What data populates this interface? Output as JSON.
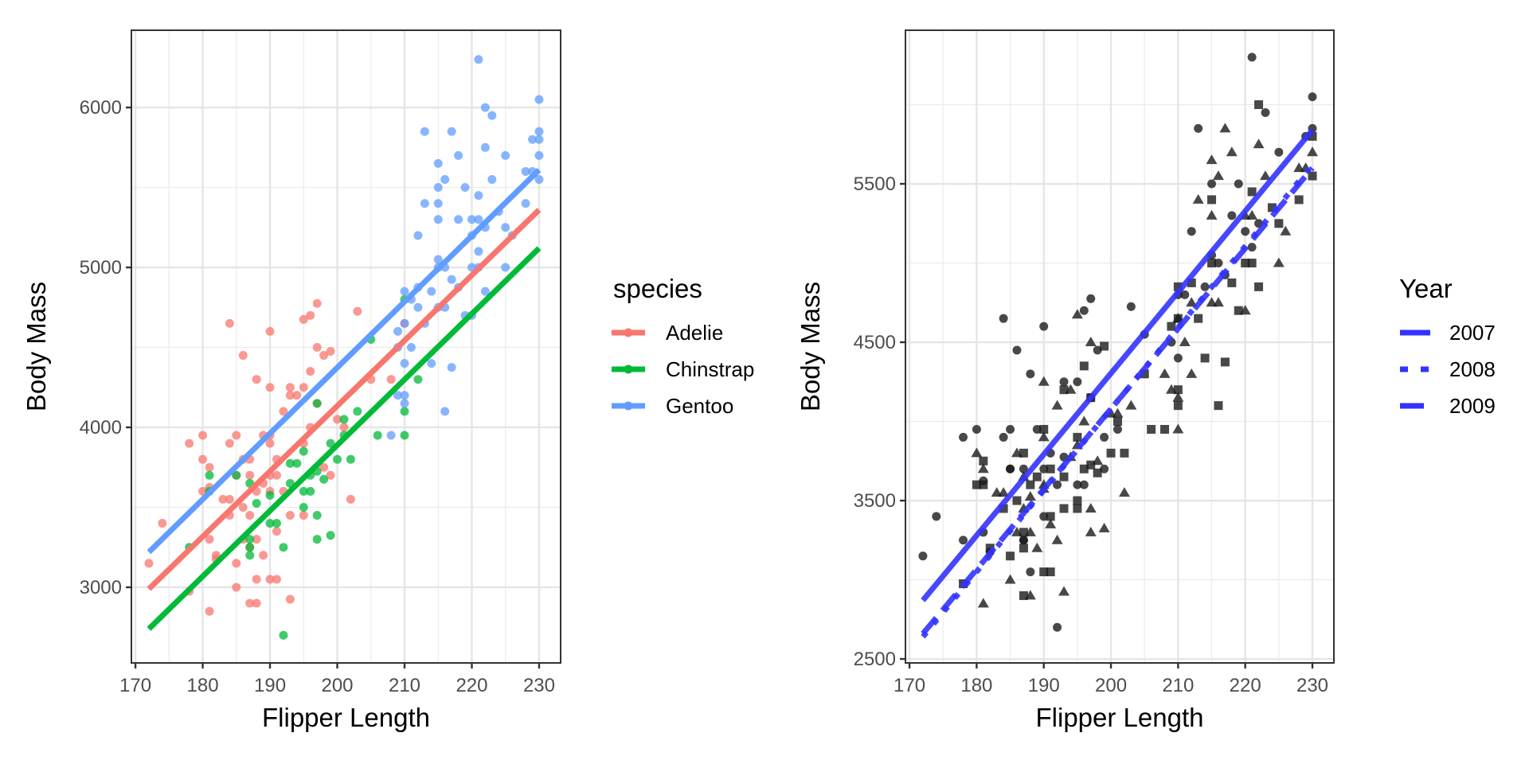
{
  "chart_data": [
    {
      "type": "scatter",
      "panel": "left",
      "title": "",
      "xlabel": "Flipper Length",
      "ylabel": "Body Mass",
      "xlim": [
        169.4,
        233.2
      ],
      "ylim": [
        2527,
        6483
      ],
      "xticks": [
        170,
        180,
        190,
        200,
        210,
        220,
        230
      ],
      "yticks": [
        3000,
        4000,
        5000,
        6000
      ],
      "grid": true,
      "legend": {
        "title": "species",
        "placement": "right",
        "entries": [
          {
            "label": "Adelie",
            "color": "#F8766D"
          },
          {
            "label": "Chinstrap",
            "color": "#00BA38"
          },
          {
            "label": "Gentoo",
            "color": "#619CFF"
          }
        ]
      },
      "color_by": "species",
      "regression_lines": [
        {
          "name": "Adelie",
          "color": "#F8766D",
          "x": [
            172,
            230
          ],
          "y": [
            2990,
            5360
          ]
        },
        {
          "name": "Chinstrap",
          "color": "#00BA38",
          "x": [
            172,
            230
          ],
          "y": [
            2740,
            5120
          ]
        },
        {
          "name": "Gentoo",
          "color": "#619CFF",
          "x": [
            172,
            230
          ],
          "y": [
            3220,
            5610
          ]
        }
      ]
    },
    {
      "type": "scatter",
      "panel": "right",
      "title": "",
      "xlabel": "Flipper Length",
      "ylabel": "Body Mass",
      "xlim": [
        169.4,
        233.2
      ],
      "ylim": [
        2475,
        6470
      ],
      "xticks": [
        170,
        180,
        190,
        200,
        210,
        220,
        230
      ],
      "yticks": [
        2500,
        3500,
        4500,
        5500
      ],
      "grid": true,
      "legend": {
        "title": "Year",
        "placement": "right",
        "entries": [
          {
            "label": "2007",
            "linetype": "solid",
            "shape": "circle"
          },
          {
            "label": "2008",
            "linetype": "dotted",
            "shape": "triangle"
          },
          {
            "label": "2009",
            "linetype": "dashed",
            "shape": "square"
          }
        ]
      },
      "line_color": "#3333FF",
      "point_color": "#1a1a1a",
      "shape_by": "year",
      "regression_lines": [
        {
          "name": "2007",
          "linetype": "solid",
          "x": [
            172,
            230
          ],
          "y": [
            2870,
            5840
          ]
        },
        {
          "name": "2008",
          "linetype": "dotted",
          "x": [
            172,
            230
          ],
          "y": [
            2640,
            5620
          ]
        },
        {
          "name": "2009",
          "linetype": "dashed",
          "x": [
            172,
            230
          ],
          "y": [
            2660,
            5600
          ]
        }
      ]
    }
  ],
  "points": [
    [
      "Adelie",
      172,
      3150,
      2007
    ],
    [
      "Adelie",
      174,
      3400,
      2007
    ],
    [
      "Adelie",
      178,
      3900,
      2007
    ],
    [
      "Adelie",
      178,
      2975,
      2009
    ],
    [
      "Adelie",
      180,
      3800,
      2008
    ],
    [
      "Adelie",
      180,
      3950,
      2007
    ],
    [
      "Adelie",
      180,
      3600,
      2009
    ],
    [
      "Adelie",
      181,
      3300,
      2007
    ],
    [
      "Adelie",
      181,
      2850,
      2008
    ],
    [
      "Adelie",
      181,
      3625,
      2007
    ],
    [
      "Adelie",
      181,
      3750,
      2009
    ],
    [
      "Adelie",
      182,
      3175,
      2007
    ],
    [
      "Adelie",
      182,
      3200,
      2009
    ],
    [
      "Adelie",
      183,
      3550,
      2008
    ],
    [
      "Adelie",
      184,
      3900,
      2007
    ],
    [
      "Adelie",
      184,
      4650,
      2007
    ],
    [
      "Adelie",
      184,
      3450,
      2009
    ],
    [
      "Adelie",
      184,
      3550,
      2008
    ],
    [
      "Adelie",
      185,
      3700,
      2007
    ],
    [
      "Adelie",
      185,
      3000,
      2008
    ],
    [
      "Adelie",
      185,
      3150,
      2009
    ],
    [
      "Adelie",
      185,
      3950,
      2007
    ],
    [
      "Adelie",
      186,
      3800,
      2008
    ],
    [
      "Adelie",
      186,
      4450,
      2007
    ],
    [
      "Adelie",
      186,
      3500,
      2009
    ],
    [
      "Adelie",
      186,
      3300,
      2008
    ],
    [
      "Adelie",
      187,
      3800,
      2009
    ],
    [
      "Adelie",
      187,
      3700,
      2007
    ],
    [
      "Adelie",
      187,
      3450,
      2008
    ],
    [
      "Adelie",
      187,
      2900,
      2009
    ],
    [
      "Adelie",
      187,
      3250,
      2007
    ],
    [
      "Adelie",
      188,
      3300,
      2008
    ],
    [
      "Adelie",
      188,
      4300,
      2007
    ],
    [
      "Adelie",
      188,
      3600,
      2009
    ],
    [
      "Adelie",
      188,
      2900,
      2008
    ],
    [
      "Adelie",
      188,
      3050,
      2007
    ],
    [
      "Adelie",
      189,
      3950,
      2007
    ],
    [
      "Adelie",
      189,
      3650,
      2009
    ],
    [
      "Adelie",
      189,
      3200,
      2008
    ],
    [
      "Adelie",
      190,
      3950,
      2009
    ],
    [
      "Adelie",
      190,
      3600,
      2008
    ],
    [
      "Adelie",
      190,
      4600,
      2007
    ],
    [
      "Adelie",
      190,
      4250,
      2008
    ],
    [
      "Adelie",
      190,
      3050,
      2009
    ],
    [
      "Adelie",
      190,
      3700,
      2007
    ],
    [
      "Adelie",
      190,
      3900,
      2008
    ],
    [
      "Adelie",
      191,
      3800,
      2007
    ],
    [
      "Adelie",
      191,
      3050,
      2009
    ],
    [
      "Adelie",
      191,
      3350,
      2008
    ],
    [
      "Adelie",
      191,
      3700,
      2009
    ],
    [
      "Adelie",
      192,
      4100,
      2008
    ],
    [
      "Adelie",
      192,
      3600,
      2007
    ],
    [
      "Adelie",
      193,
      4250,
      2007
    ],
    [
      "Adelie",
      193,
      3450,
      2009
    ],
    [
      "Adelie",
      193,
      2925,
      2008
    ],
    [
      "Adelie",
      193,
      4200,
      2009
    ],
    [
      "Adelie",
      194,
      4200,
      2008
    ],
    [
      "Adelie",
      195,
      3900,
      2009
    ],
    [
      "Adelie",
      195,
      4250,
      2007
    ],
    [
      "Adelie",
      195,
      4675,
      2008
    ],
    [
      "Adelie",
      195,
      3450,
      2009
    ],
    [
      "Adelie",
      196,
      4000,
      2008
    ],
    [
      "Adelie",
      196,
      4700,
      2007
    ],
    [
      "Adelie",
      196,
      4350,
      2009
    ],
    [
      "Adelie",
      197,
      4775,
      2007
    ],
    [
      "Adelie",
      197,
      4500,
      2008
    ],
    [
      "Adelie",
      197,
      4150,
      2009
    ],
    [
      "Adelie",
      198,
      3750,
      2008
    ],
    [
      "Adelie",
      198,
      4450,
      2007
    ],
    [
      "Adelie",
      199,
      4475,
      2009
    ],
    [
      "Adelie",
      199,
      3700,
      2007
    ],
    [
      "Adelie",
      200,
      4050,
      2008
    ],
    [
      "Adelie",
      201,
      4000,
      2009
    ],
    [
      "Adelie",
      202,
      3550,
      2008
    ],
    [
      "Adelie",
      203,
      4725,
      2007
    ],
    [
      "Adelie",
      205,
      4300,
      2009
    ],
    [
      "Adelie",
      208,
      4300,
      2008
    ],
    [
      "Adelie",
      210,
      4650,
      2009
    ],
    [
      "Chinstrap",
      178,
      3250,
      2007
    ],
    [
      "Chinstrap",
      181,
      3700,
      2008
    ],
    [
      "Chinstrap",
      181,
      3600,
      2009
    ],
    [
      "Chinstrap",
      185,
      3700,
      2007
    ],
    [
      "Chinstrap",
      187,
      3650,
      2008
    ],
    [
      "Chinstrap",
      187,
      3200,
      2009
    ],
    [
      "Chinstrap",
      187,
      3250,
      2007
    ],
    [
      "Chinstrap",
      187,
      3300,
      2009
    ],
    [
      "Chinstrap",
      188,
      3525,
      2008
    ],
    [
      "Chinstrap",
      190,
      3400,
      2007
    ],
    [
      "Chinstrap",
      190,
      3575,
      2008
    ],
    [
      "Chinstrap",
      191,
      3400,
      2009
    ],
    [
      "Chinstrap",
      192,
      2700,
      2007
    ],
    [
      "Chinstrap",
      192,
      3250,
      2008
    ],
    [
      "Chinstrap",
      193,
      3650,
      2009
    ],
    [
      "Chinstrap",
      193,
      3775,
      2007
    ],
    [
      "Chinstrap",
      194,
      3775,
      2008
    ],
    [
      "Chinstrap",
      195,
      3500,
      2009
    ],
    [
      "Chinstrap",
      195,
      3600,
      2007
    ],
    [
      "Chinstrap",
      195,
      3850,
      2008
    ],
    [
      "Chinstrap",
      196,
      3700,
      2009
    ],
    [
      "Chinstrap",
      196,
      3600,
      2007
    ],
    [
      "Chinstrap",
      197,
      3300,
      2008
    ],
    [
      "Chinstrap",
      197,
      3725,
      2009
    ],
    [
      "Chinstrap",
      197,
      3450,
      2008
    ],
    [
      "Chinstrap",
      197,
      4150,
      2007
    ],
    [
      "Chinstrap",
      198,
      3675,
      2009
    ],
    [
      "Chinstrap",
      199,
      3325,
      2008
    ],
    [
      "Chinstrap",
      199,
      3900,
      2007
    ],
    [
      "Chinstrap",
      200,
      3800,
      2009
    ],
    [
      "Chinstrap",
      201,
      4050,
      2008
    ],
    [
      "Chinstrap",
      201,
      3950,
      2007
    ],
    [
      "Chinstrap",
      202,
      3800,
      2009
    ],
    [
      "Chinstrap",
      203,
      4100,
      2008
    ],
    [
      "Chinstrap",
      205,
      4550,
      2007
    ],
    [
      "Chinstrap",
      206,
      3950,
      2009
    ],
    [
      "Chinstrap",
      210,
      3950,
      2008
    ],
    [
      "Chinstrap",
      210,
      4100,
      2009
    ],
    [
      "Chinstrap",
      210,
      4800,
      2007
    ],
    [
      "Chinstrap",
      212,
      4300,
      2008
    ],
    [
      "Gentoo",
      208,
      3950,
      2009
    ],
    [
      "Gentoo",
      209,
      4200,
      2008
    ],
    [
      "Gentoo",
      209,
      4500,
      2007
    ],
    [
      "Gentoo",
      209,
      4600,
      2009
    ],
    [
      "Gentoo",
      210,
      4150,
      2008
    ],
    [
      "Gentoo",
      210,
      4200,
      2009
    ],
    [
      "Gentoo",
      210,
      4400,
      2007
    ],
    [
      "Gentoo",
      210,
      4650,
      2008
    ],
    [
      "Gentoo",
      210,
      4850,
      2009
    ],
    [
      "Gentoo",
      211,
      4500,
      2008
    ],
    [
      "Gentoo",
      211,
      4800,
      2007
    ],
    [
      "Gentoo",
      212,
      4875,
      2009
    ],
    [
      "Gentoo",
      212,
      4750,
      2008
    ],
    [
      "Gentoo",
      212,
      5200,
      2007
    ],
    [
      "Gentoo",
      213,
      4650,
      2009
    ],
    [
      "Gentoo",
      213,
      5400,
      2008
    ],
    [
      "Gentoo",
      213,
      5850,
      2007
    ],
    [
      "Gentoo",
      214,
      4400,
      2009
    ],
    [
      "Gentoo",
      214,
      4850,
      2007
    ],
    [
      "Gentoo",
      215,
      4750,
      2008
    ],
    [
      "Gentoo",
      215,
      5000,
      2009
    ],
    [
      "Gentoo",
      215,
      5050,
      2007
    ],
    [
      "Gentoo",
      215,
      5300,
      2008
    ],
    [
      "Gentoo",
      215,
      5400,
      2009
    ],
    [
      "Gentoo",
      215,
      5500,
      2007
    ],
    [
      "Gentoo",
      215,
      5650,
      2008
    ],
    [
      "Gentoo",
      216,
      4100,
      2009
    ],
    [
      "Gentoo",
      216,
      4750,
      2008
    ],
    [
      "Gentoo",
      216,
      5000,
      2007
    ],
    [
      "Gentoo",
      216,
      5550,
      2008
    ],
    [
      "Gentoo",
      217,
      4375,
      2009
    ],
    [
      "Gentoo",
      217,
      4925,
      2007
    ],
    [
      "Gentoo",
      217,
      5850,
      2008
    ],
    [
      "Gentoo",
      218,
      4875,
      2009
    ],
    [
      "Gentoo",
      218,
      5300,
      2007
    ],
    [
      "Gentoo",
      218,
      5700,
      2008
    ],
    [
      "Gentoo",
      219,
      4700,
      2009
    ],
    [
      "Gentoo",
      219,
      5500,
      2007
    ],
    [
      "Gentoo",
      220,
      4700,
      2008
    ],
    [
      "Gentoo",
      220,
      5000,
      2009
    ],
    [
      "Gentoo",
      220,
      5200,
      2007
    ],
    [
      "Gentoo",
      220,
      5300,
      2008
    ],
    [
      "Gentoo",
      221,
      5000,
      2009
    ],
    [
      "Gentoo",
      221,
      5100,
      2007
    ],
    [
      "Gentoo",
      221,
      5300,
      2008
    ],
    [
      "Gentoo",
      221,
      5450,
      2009
    ],
    [
      "Gentoo",
      221,
      6300,
      2007
    ],
    [
      "Gentoo",
      222,
      4850,
      2009
    ],
    [
      "Gentoo",
      222,
      5250,
      2007
    ],
    [
      "Gentoo",
      222,
      5750,
      2008
    ],
    [
      "Gentoo",
      222,
      6000,
      2009
    ],
    [
      "Gentoo",
      223,
      5550,
      2008
    ],
    [
      "Gentoo",
      223,
      5950,
      2007
    ],
    [
      "Gentoo",
      224,
      5350,
      2009
    ],
    [
      "Gentoo",
      225,
      5000,
      2008
    ],
    [
      "Gentoo",
      225,
      5250,
      2009
    ],
    [
      "Gentoo",
      225,
      5700,
      2007
    ],
    [
      "Gentoo",
      226,
      5200,
      2008
    ],
    [
      "Gentoo",
      228,
      5400,
      2009
    ],
    [
      "Gentoo",
      228,
      5600,
      2008
    ],
    [
      "Gentoo",
      229,
      5800,
      2007
    ],
    [
      "Gentoo",
      230,
      5550,
      2009
    ],
    [
      "Gentoo",
      230,
      5700,
      2008
    ],
    [
      "Gentoo",
      230,
      5800,
      2009
    ],
    [
      "Gentoo",
      230,
      5850,
      2007
    ],
    [
      "Gentoo",
      230,
      6050,
      2007
    ],
    [
      "Gentoo",
      229,
      5600,
      2008
    ]
  ]
}
